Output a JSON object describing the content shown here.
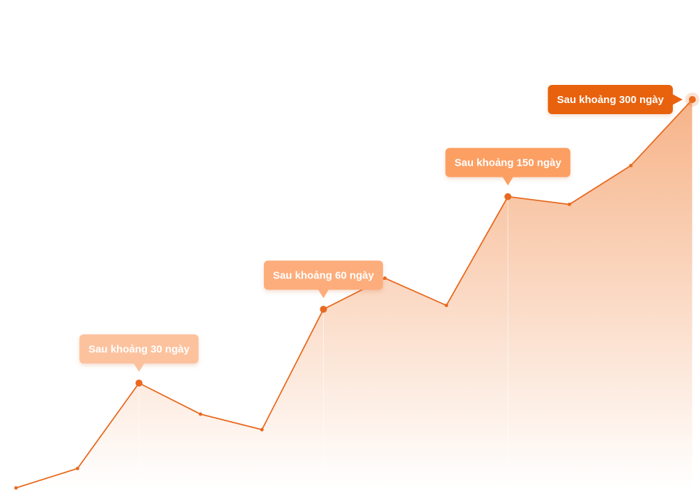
{
  "chart_data": {
    "type": "line",
    "categories": [
      null,
      null,
      null,
      null,
      null,
      null,
      null,
      null,
      null,
      null,
      null,
      null
    ],
    "values": [
      0,
      5,
      27,
      19,
      15,
      46,
      54,
      47,
      75,
      73,
      83,
      100
    ],
    "color": "#e8691f",
    "ylim": [
      0,
      100
    ],
    "annotations": [
      {
        "text": "Sau khoảng 30 ngày",
        "point": 2,
        "color": "#fcc29e"
      },
      {
        "text": "Sau khoảng 60 ngày",
        "point": 5,
        "color": "#fdad7b"
      },
      {
        "text": "Sau khoảng 150 ngày",
        "point": 8,
        "color": "#fc9f63"
      },
      {
        "text": "Sau khoảng 300 ngày",
        "point": 11,
        "color": "#e8620f"
      }
    ]
  }
}
